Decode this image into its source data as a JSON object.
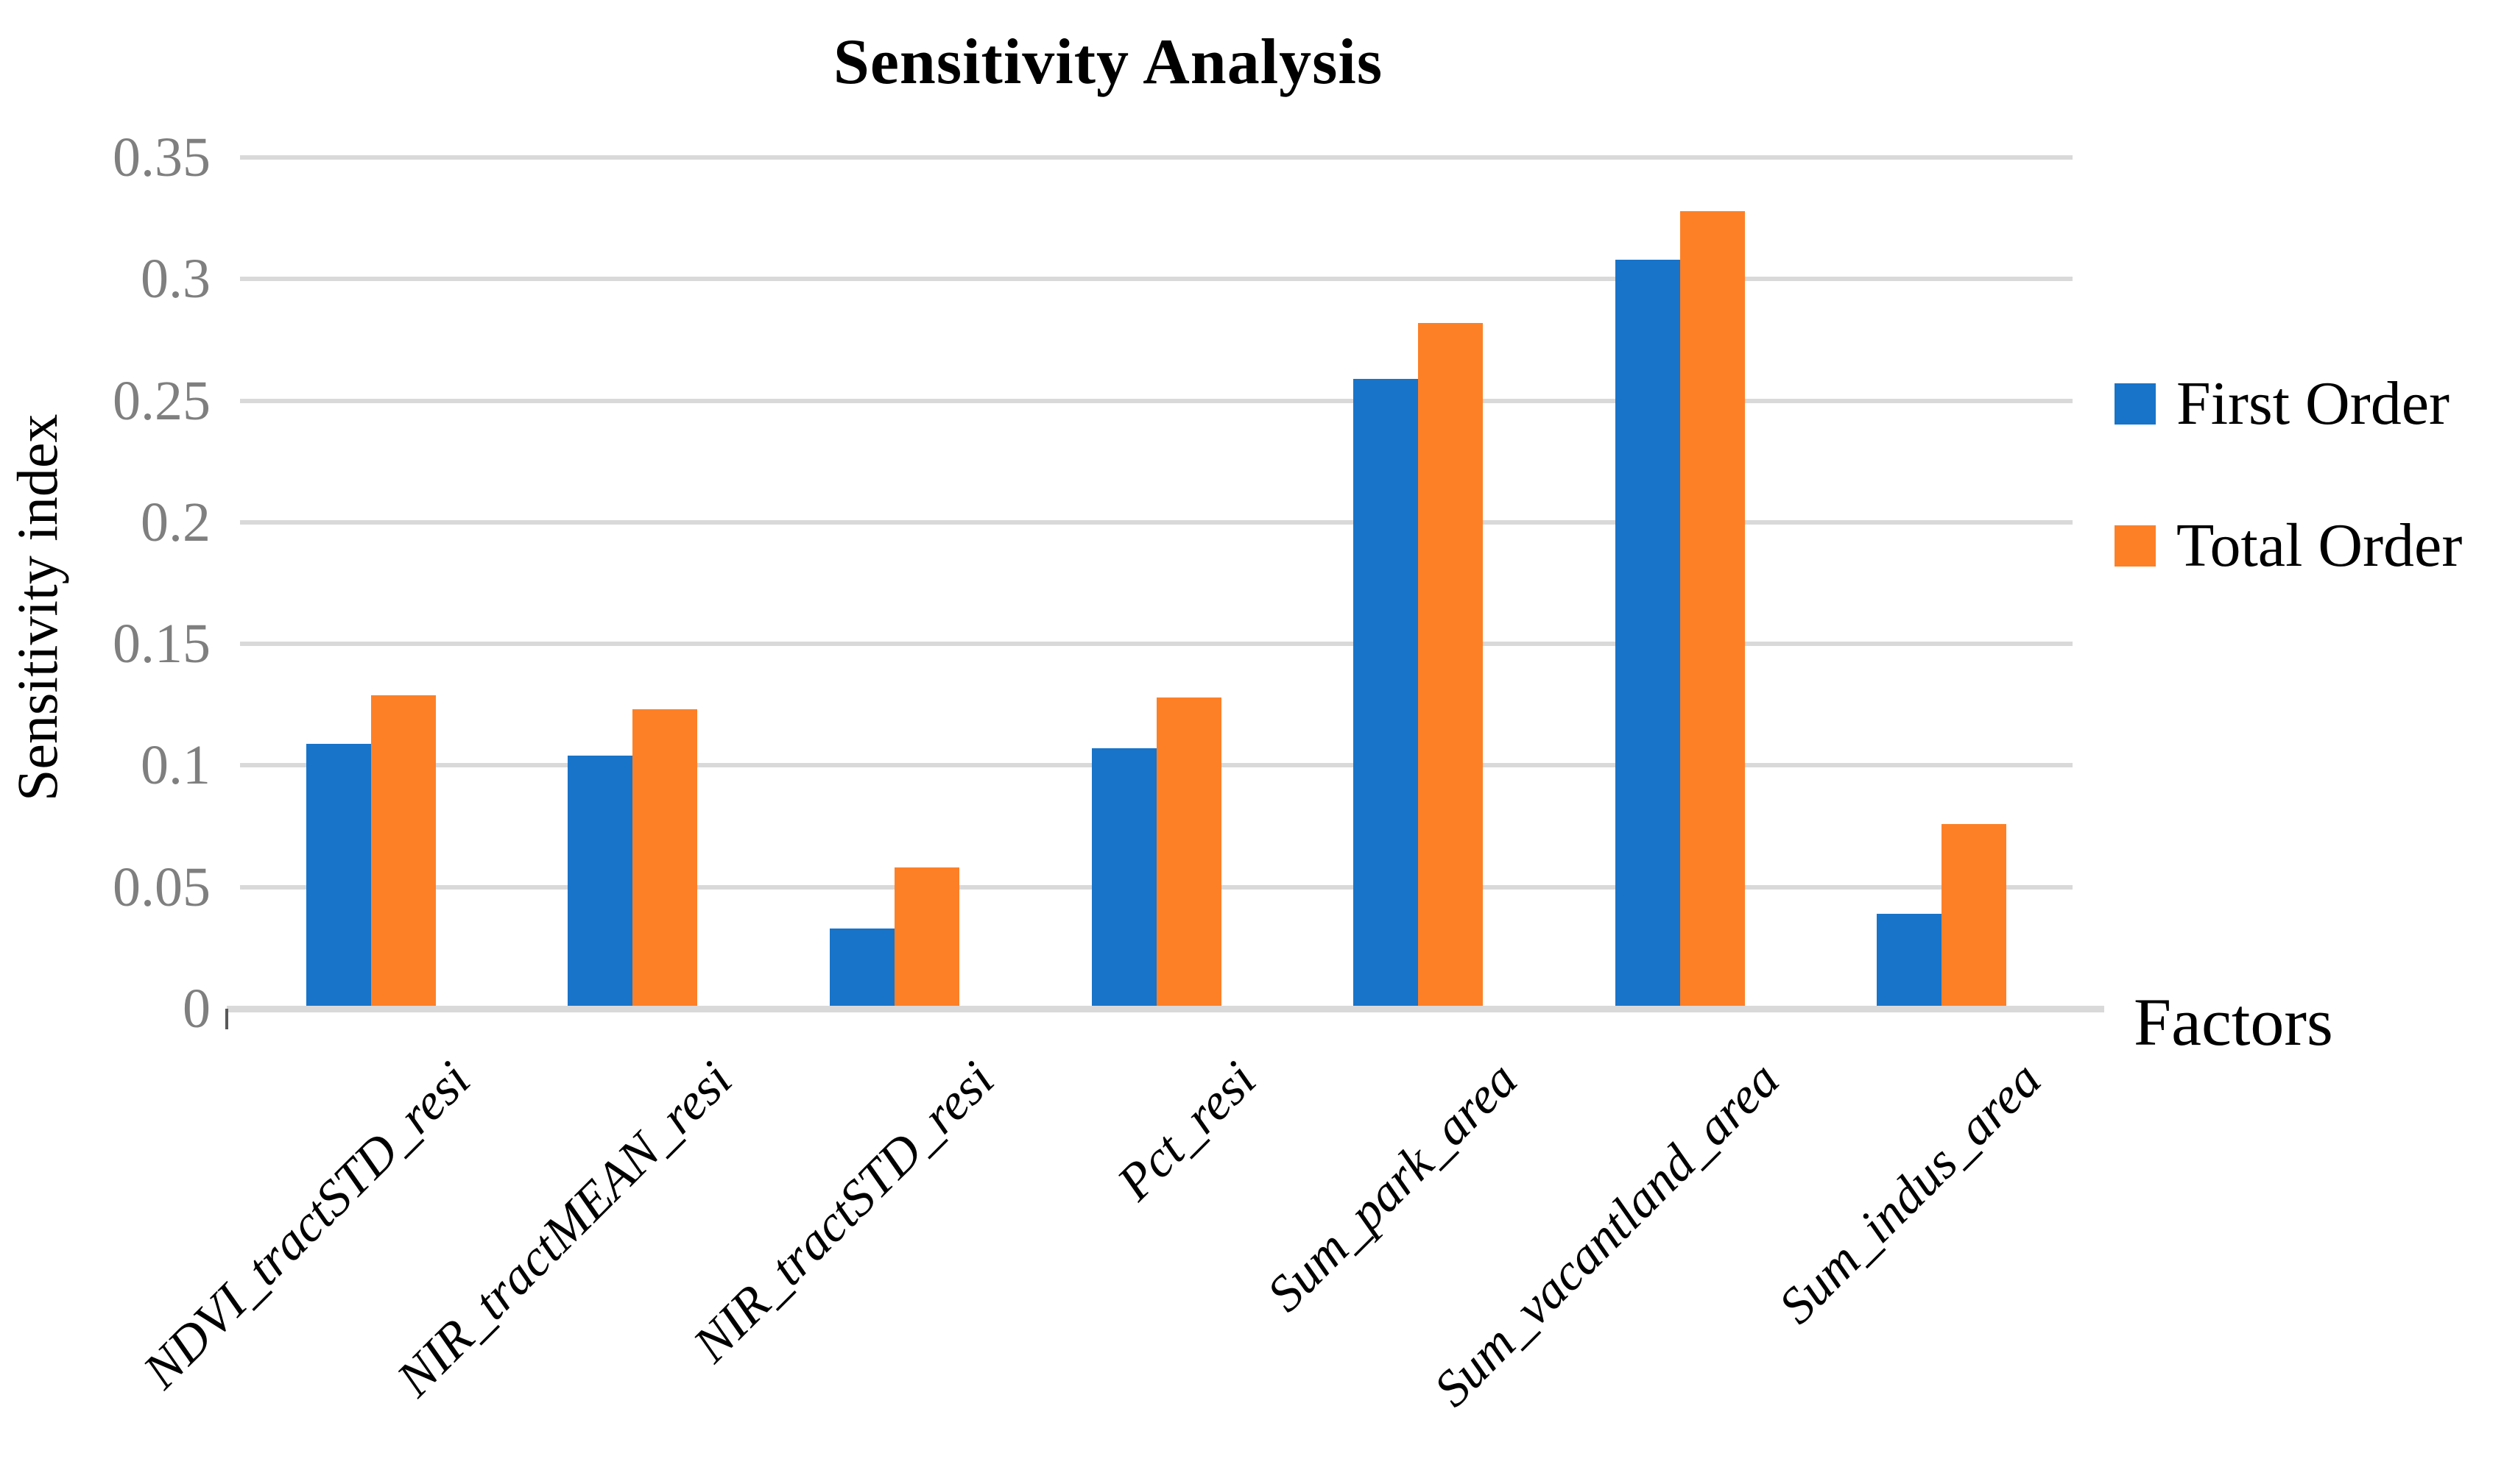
{
  "title": "Sensitivity Analysis",
  "y_axis": {
    "title": "Sensitivity index",
    "ticks": [
      "0",
      "0.05",
      "0.1",
      "0.15",
      "0.2",
      "0.25",
      "0.3",
      "0.35"
    ],
    "tick_color": "#7f7f7f"
  },
  "x_axis": {
    "title": "Factors"
  },
  "legend": [
    {
      "label": "First Order",
      "color": "#1874c9"
    },
    {
      "label": "Total Order",
      "color": "#fd8027"
    }
  ],
  "colors": {
    "first_order": "#1874c9",
    "total_order": "#fd8027",
    "gridline": "#d9d9d9",
    "axis_line": "#d9d9d9",
    "title_text": "#000000",
    "tick_text": "#7f7f7f"
  },
  "chart_data": {
    "type": "bar",
    "title": "Sensitivity Analysis",
    "xlabel": "Factors",
    "ylabel": "Sensitivity index",
    "ylim": [
      0,
      0.35
    ],
    "ytick_interval": 0.05,
    "grid": true,
    "legend_position": "right",
    "categories": [
      "NDVI_tractSTD_resi",
      "NIR_tractMEAN_resi",
      "NIR_tractSTD_resi",
      "Pct_resi",
      "Sum_park_area",
      "Sum_vacantland_area",
      "Sum_indus_area"
    ],
    "series": [
      {
        "name": "First Order",
        "color": "#1874c9",
        "values": [
          0.109,
          0.104,
          0.033,
          0.107,
          0.259,
          0.308,
          0.039
        ]
      },
      {
        "name": "Total Order",
        "color": "#fd8027",
        "values": [
          0.129,
          0.123,
          0.058,
          0.128,
          0.282,
          0.328,
          0.076
        ]
      }
    ]
  }
}
